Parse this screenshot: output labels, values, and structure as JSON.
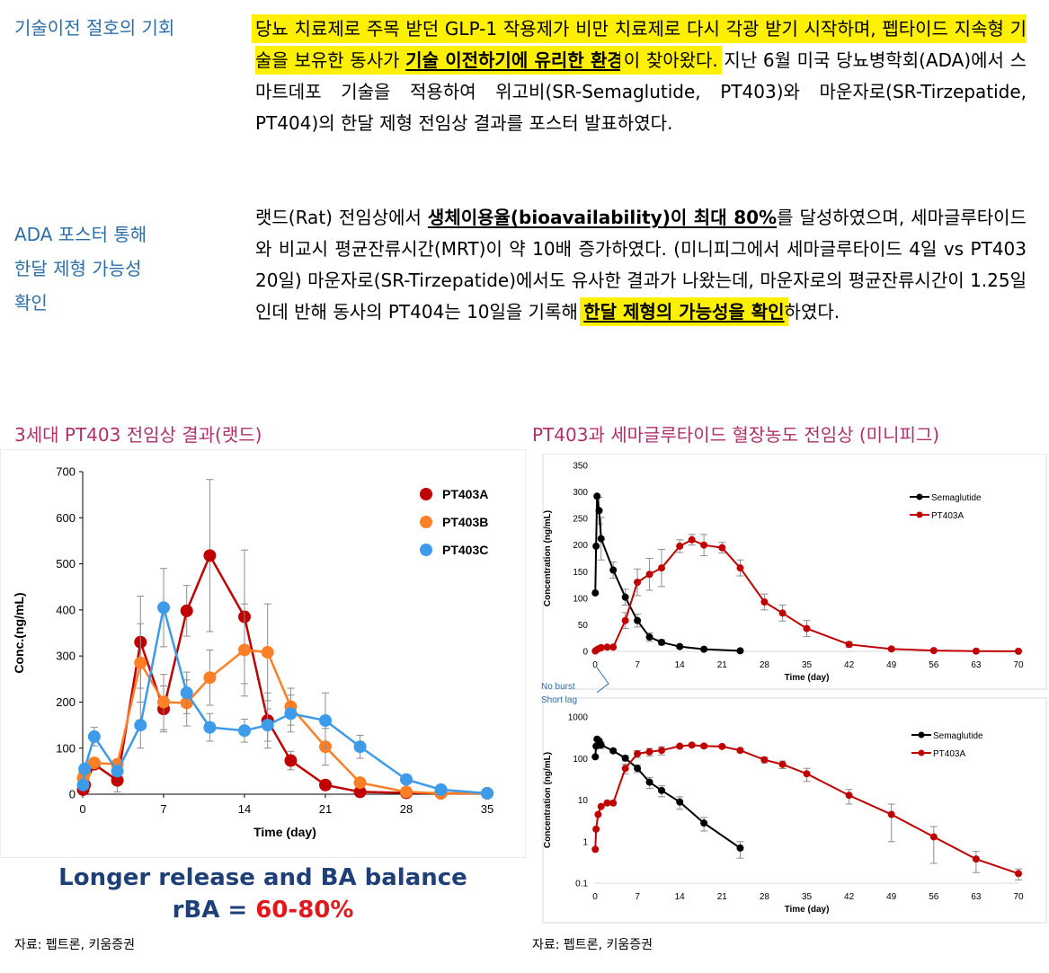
{
  "sections": [
    {
      "label_lines": [
        "기술이전 절호의 기회"
      ],
      "paragraph": [
        {
          "t": "당뇨 치료제로 주목 받던 GLP-1 작용제가 비만 치료제로 다시 각광 받기 시작하며, 펩타이드 지속형 기술을 보유한 동사가 ",
          "s": "hl"
        },
        {
          "t": "기술 이전하기에 유리한 환경",
          "s": "hlul"
        },
        {
          "t": "이 찾아왔다.",
          "s": "hl"
        },
        {
          "t": " 지난 6월 미국 당뇨병학회(ADA)에서 스마트데포 기술을 적용하여 위고비(SR-Semaglutide, PT403)와 마운자로(SR-Tirzepatide, PT404)의 한달 제형 전임상 결과를 포스터 발표하였다.",
          "s": ""
        }
      ]
    },
    {
      "label_lines": [
        "ADA 포스터 통해",
        "한달 제형 가능성",
        "확인"
      ],
      "paragraph": [
        {
          "t": "랫드(Rat) 전임상에서 ",
          "s": ""
        },
        {
          "t": "생체이용율(bioavailability)이 최대 80%",
          "s": "ul"
        },
        {
          "t": "를 달성하였으며, 세마글루타이드와 비교시 평균잔류시간(MRT)이 약 10배 증가하였다. (미니피그에서 세마글루타이드 4일 vs PT403 20일) 마운자로(SR-Tirzepatide)에서도 유사한 결과가 나왔는데, 마운자로의 평균잔류시간이 1.25일인데 반해 동사의 PT404는 10일을 기록해 ",
          "s": ""
        },
        {
          "t": "한달 제형의 가능성을 확인",
          "s": "hlul"
        },
        {
          "t": "하였다.",
          "s": ""
        }
      ]
    }
  ],
  "figures": {
    "left": {
      "title": "3세대 PT403 전임상 결과(랫드)",
      "source": "자료: 펩트론, 키움증권",
      "caption_line1": "Longer release and BA balance",
      "caption_prefix": "rBA = ",
      "caption_value": "60-80%"
    },
    "right": {
      "title": "PT403과 세마글루타이드 혈장농도 전임상 (미니피그)",
      "source": "자료: 펩트론, 키움증권",
      "annotation_lines": [
        "No burst",
        "Short lag"
      ]
    }
  },
  "colors": {
    "pt403a": "#c00000",
    "pt403b": "#ff7f27",
    "pt403c": "#3d9be9",
    "sema": "#000000",
    "side": "#2e6ea6",
    "title": "#b0306e",
    "highlight": "#ffef00"
  },
  "chart_data": [
    {
      "type": "line",
      "xlabel": "Time (day)",
      "ylabel": "Conc.(ng/mL)",
      "xlim": [
        0,
        35
      ],
      "ylim": [
        0,
        700
      ],
      "xticks": [
        0,
        7,
        14,
        21,
        28,
        35
      ],
      "yticks": [
        0,
        100,
        200,
        300,
        400,
        500,
        600,
        700
      ],
      "legend": "top-right",
      "grid": false,
      "series": [
        {
          "name": "PT403A",
          "color": "#c00000",
          "x": [
            0.04,
            0.17,
            1,
            3,
            5,
            7,
            9,
            11,
            14,
            16,
            18,
            21,
            24,
            28,
            31,
            35
          ],
          "y": [
            10,
            20,
            65,
            30,
            330,
            185,
            398,
            518,
            385,
            160,
            73,
            20,
            5,
            3,
            2,
            2
          ],
          "err": [
            0,
            0,
            0,
            25,
            100,
            50,
            55,
            165,
            145,
            60,
            20,
            5,
            2,
            1,
            1,
            1
          ]
        },
        {
          "name": "PT403B",
          "color": "#ff7f27",
          "x": [
            0.04,
            0.17,
            1,
            3,
            5,
            7,
            9,
            11,
            14,
            16,
            18,
            21,
            24,
            28,
            31,
            35
          ],
          "y": [
            35,
            45,
            68,
            65,
            285,
            200,
            198,
            253,
            313,
            308,
            190,
            103,
            25,
            5,
            2,
            2
          ],
          "err": [
            0,
            0,
            0,
            0,
            85,
            60,
            50,
            60,
            100,
            105,
            40,
            40,
            5,
            2,
            1,
            1
          ]
        },
        {
          "name": "PT403C",
          "color": "#3d9be9",
          "x": [
            0.04,
            0.17,
            1,
            3,
            5,
            7,
            9,
            11,
            14,
            16,
            18,
            21,
            24,
            28,
            31,
            35
          ],
          "y": [
            20,
            55,
            125,
            50,
            150,
            405,
            220,
            145,
            138,
            150,
            175,
            160,
            103,
            32,
            10,
            2
          ],
          "err": [
            0,
            0,
            20,
            0,
            50,
            85,
            45,
            30,
            25,
            35,
            40,
            60,
            25,
            10,
            3,
            1
          ]
        }
      ]
    },
    {
      "type": "line",
      "xlabel": "Time (day)",
      "ylabel": "Concentration (ng/mL)",
      "xlim": [
        0,
        70
      ],
      "ylim": [
        0,
        350
      ],
      "xticks": [
        0,
        7,
        14,
        21,
        28,
        35,
        42,
        49,
        56,
        63,
        70
      ],
      "yticks": [
        0,
        50,
        100,
        150,
        200,
        250,
        300,
        350
      ],
      "legend": "top-right",
      "grid": false,
      "series": [
        {
          "name": "Semaglutide",
          "color": "#000000",
          "x": [
            0.04,
            0.17,
            0.33,
            0.67,
            1,
            3,
            5,
            7,
            9,
            11,
            14,
            18,
            24
          ],
          "y": [
            110,
            198,
            292,
            265,
            212,
            153,
            102,
            58,
            27,
            17,
            9,
            4,
            1
          ],
          "err": [
            0,
            0,
            0,
            25,
            40,
            15,
            15,
            12,
            8,
            5,
            3,
            1,
            0
          ]
        },
        {
          "name": "PT403A",
          "color": "#c00000",
          "x": [
            0.04,
            0.17,
            0.5,
            1,
            2,
            3,
            5,
            7,
            9,
            11,
            14,
            16,
            18,
            21,
            24,
            28,
            31,
            35,
            42,
            49,
            56,
            63,
            70
          ],
          "y": [
            0.7,
            2,
            4.5,
            7,
            8,
            8,
            58,
            130,
            145,
            157,
            198,
            210,
            200,
            195,
            157,
            93,
            72,
            43,
            13,
            4.5,
            1.5,
            0.5,
            0.2
          ],
          "err": [
            0,
            0,
            0,
            0,
            0,
            0,
            15,
            25,
            30,
            35,
            12,
            10,
            20,
            10,
            15,
            15,
            15,
            15,
            5,
            2,
            0.5,
            0.1,
            0.05
          ]
        }
      ]
    },
    {
      "type": "line",
      "xlabel": "Time (day)",
      "ylabel": "Concentration (ng/mL)",
      "xlim": [
        0,
        70
      ],
      "ylim": [
        0.1,
        1000
      ],
      "yscale": "log",
      "xticks": [
        0,
        7,
        14,
        21,
        28,
        35,
        42,
        49,
        56,
        63,
        70
      ],
      "yticks": [
        0.1,
        1,
        10,
        100,
        1000
      ],
      "legend": "top-right",
      "grid": false,
      "series": [
        {
          "name": "Semaglutide",
          "color": "#000000",
          "x": [
            0.04,
            0.17,
            0.33,
            0.67,
            1,
            3,
            5,
            7,
            9,
            11,
            14,
            18,
            24
          ],
          "y": [
            110,
            198,
            292,
            265,
            212,
            153,
            102,
            58,
            27,
            17,
            9,
            2.8,
            0.7
          ],
          "err": [
            0,
            0,
            0,
            25,
            40,
            15,
            15,
            12,
            8,
            5,
            3,
            1,
            0.3
          ]
        },
        {
          "name": "PT403A",
          "color": "#c00000",
          "x": [
            0.04,
            0.17,
            0.5,
            1,
            2,
            3,
            5,
            7,
            9,
            11,
            14,
            16,
            18,
            21,
            24,
            28,
            31,
            35,
            42,
            49,
            56,
            63,
            70
          ],
          "y": [
            0.65,
            2,
            4.5,
            7,
            8.5,
            8.5,
            58,
            130,
            145,
            157,
            198,
            210,
            200,
            195,
            157,
            93,
            72,
            43,
            13,
            4.5,
            1.3,
            0.38,
            0.17
          ],
          "err": [
            0,
            0,
            0,
            0,
            0,
            0,
            15,
            25,
            30,
            35,
            12,
            10,
            20,
            10,
            15,
            15,
            15,
            15,
            5,
            3.5,
            1,
            0.2,
            0.05
          ]
        }
      ]
    }
  ]
}
